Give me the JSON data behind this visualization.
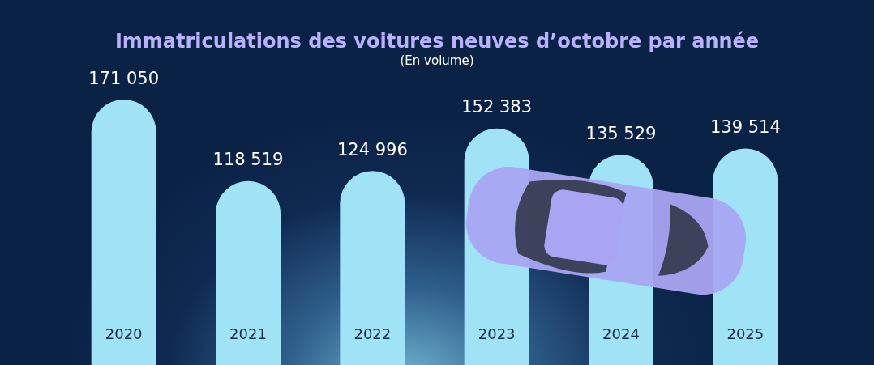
{
  "chart_data": {
    "type": "bar",
    "title": "Immatriculations des voitures neuves d’octobre par année",
    "subtitle": "(En volume)",
    "categories": [
      "2020",
      "2021",
      "2022",
      "2023",
      "2024",
      "2025"
    ],
    "values": [
      171050,
      118519,
      124996,
      152383,
      135529,
      139514
    ],
    "value_labels": [
      "171 050",
      "118 519",
      "124 996",
      "152 383",
      "135 529",
      "139 514"
    ],
    "color": "#a0e2f6"
  }
}
